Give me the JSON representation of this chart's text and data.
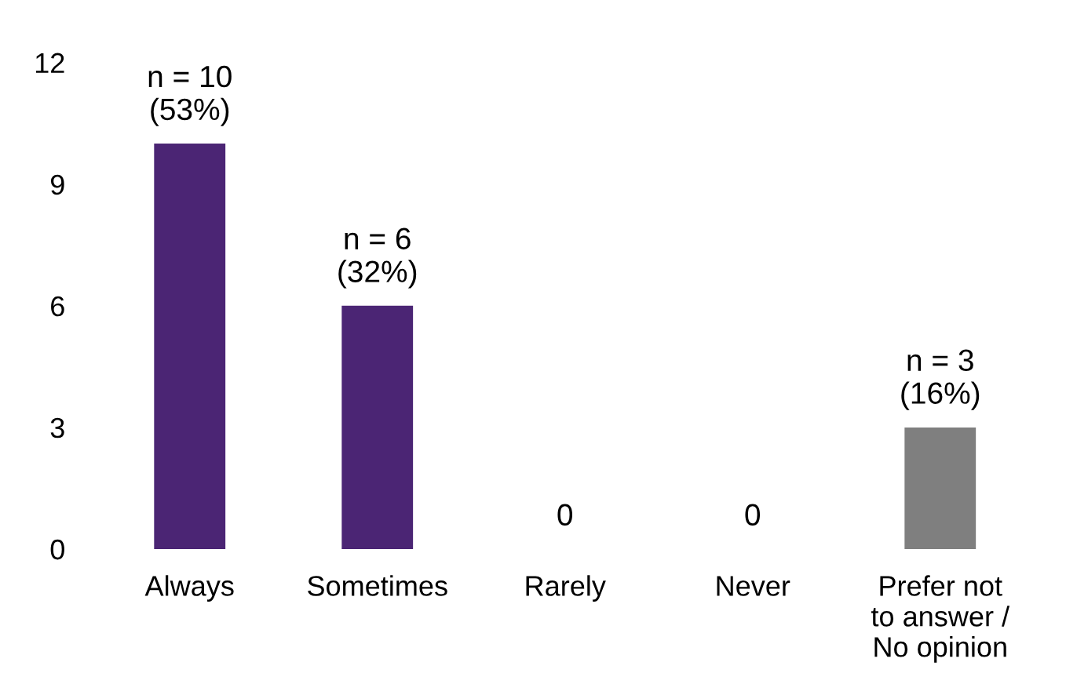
{
  "chart_data": {
    "type": "bar",
    "categories": [
      "Always",
      "Sometimes",
      "Rarely",
      "Never",
      "Prefer not\nto answer /\nNo opinion"
    ],
    "values": [
      10,
      6,
      0,
      0,
      3
    ],
    "colors": [
      "#4b2574",
      "#4b2574",
      "#4b2574",
      "#4b2574",
      "#7f7f7f"
    ],
    "value_labels": [
      "n = 10\n(53%)",
      "n = 6\n(32%)",
      "0",
      "0",
      "n = 3\n(16%)"
    ],
    "ylim": [
      0,
      12
    ],
    "yticks": [
      0,
      3,
      6,
      9,
      12
    ],
    "grid": false,
    "legend": false
  }
}
